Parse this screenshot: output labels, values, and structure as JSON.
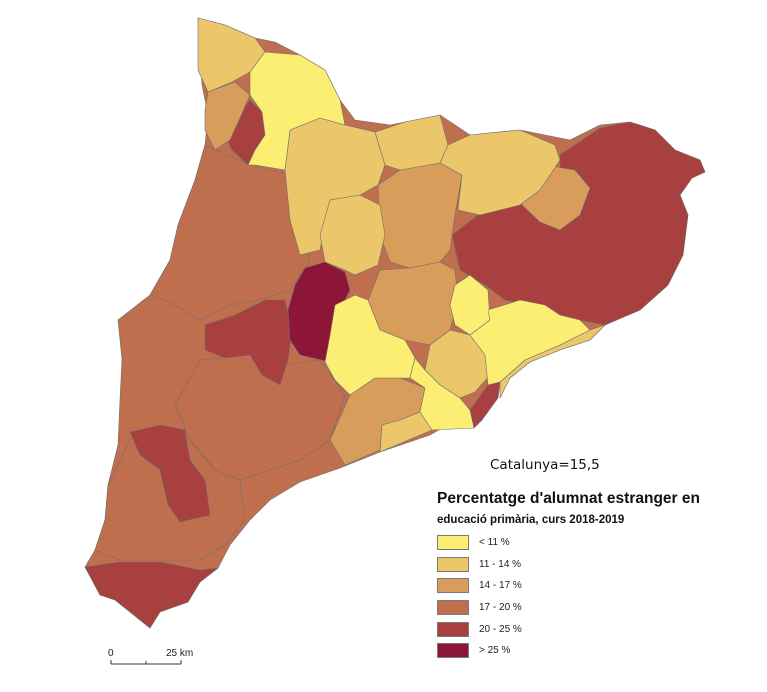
{
  "summary_text": "Catalunya=15,5",
  "legend": {
    "title_line1": "Percentatge d'alumnat estranger en",
    "title_line2": "educació primària, curs 2018-2019",
    "items": [
      {
        "label": "< 11 %",
        "color": "#fbee73"
      },
      {
        "label": "11 - 14 %",
        "color": "#ecc76a"
      },
      {
        "label": "14 - 17 %",
        "color": "#d99d5b"
      },
      {
        "label": "17 - 20 %",
        "color": "#c06f4e"
      },
      {
        "label": "20 - 25 %",
        "color": "#a8403f"
      },
      {
        "label": "> 25 %",
        "color": "#8c1538"
      }
    ]
  },
  "scale_bar": {
    "start_label": "0",
    "end_label": "25 km"
  }
}
